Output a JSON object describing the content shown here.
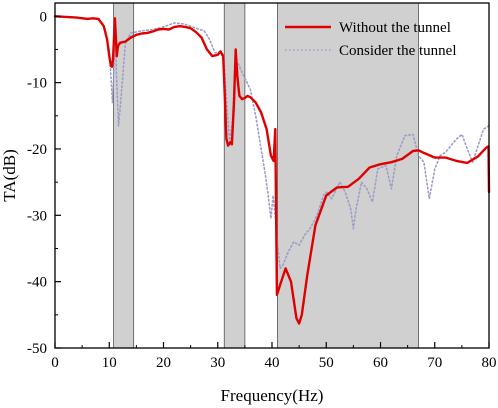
{
  "chart_data": {
    "type": "line",
    "xlabel": "Frequency(Hz)",
    "ylabel": "TA(dB)",
    "xlim": [
      0,
      80
    ],
    "ylim": [
      -50,
      2
    ],
    "xticks": [
      0,
      10,
      20,
      30,
      40,
      50,
      60,
      70,
      80
    ],
    "yticks": [
      0,
      -10,
      -20,
      -30,
      -40,
      -50
    ],
    "grid": false,
    "legend_position": "top-right",
    "shaded_bands": [
      {
        "x0": 10.8,
        "x1": 14.5
      },
      {
        "x0": 31.2,
        "x1": 35.0
      },
      {
        "x0": 41.0,
        "x1": 67.0
      }
    ],
    "band_color": "#d0d0d0",
    "series": [
      {
        "name": "Without the tunnel",
        "color": "#e00000",
        "style": "solid",
        "points": [
          [
            0,
            0
          ],
          [
            2,
            -0.1
          ],
          [
            4,
            -0.2
          ],
          [
            6,
            -0.4
          ],
          [
            7,
            -0.3
          ],
          [
            8,
            -0.4
          ],
          [
            9,
            -1.5
          ],
          [
            9.6,
            -3.5
          ],
          [
            10,
            -6
          ],
          [
            10.3,
            -7.5
          ],
          [
            10.5,
            -7.6
          ],
          [
            10.7,
            -6.5
          ],
          [
            10.9,
            -3
          ],
          [
            11.05,
            -0.3
          ],
          [
            11.2,
            -3
          ],
          [
            11.4,
            -6
          ],
          [
            11.6,
            -4.5
          ],
          [
            12,
            -4
          ],
          [
            13,
            -3.8
          ],
          [
            14,
            -3.2
          ],
          [
            15,
            -2.8
          ],
          [
            16,
            -2.6
          ],
          [
            17,
            -2.5
          ],
          [
            18,
            -2.3
          ],
          [
            19,
            -2.0
          ],
          [
            20,
            -1.9
          ],
          [
            21,
            -2.0
          ],
          [
            22,
            -1.6
          ],
          [
            23,
            -1.5
          ],
          [
            24,
            -1.6
          ],
          [
            25,
            -1.8
          ],
          [
            26,
            -2.4
          ],
          [
            27,
            -3.2
          ],
          [
            28,
            -5
          ],
          [
            29,
            -6
          ],
          [
            30,
            -5.8
          ],
          [
            30.5,
            -5.3
          ],
          [
            31,
            -6
          ],
          [
            31.3,
            -12
          ],
          [
            31.6,
            -18.5
          ],
          [
            31.9,
            -19.5
          ],
          [
            32.3,
            -19.0
          ],
          [
            32.6,
            -19.3
          ],
          [
            33,
            -13
          ],
          [
            33.3,
            -5
          ],
          [
            33.6,
            -9
          ],
          [
            34,
            -12
          ],
          [
            34.5,
            -12.5
          ],
          [
            35,
            -12.3
          ],
          [
            35.5,
            -12.0
          ],
          [
            36,
            -12.2
          ],
          [
            37,
            -13.0
          ],
          [
            38,
            -14.5
          ],
          [
            39,
            -17
          ],
          [
            39.8,
            -21
          ],
          [
            40.3,
            -21.8
          ],
          [
            40.6,
            -17
          ],
          [
            40.9,
            -42
          ],
          [
            41.5,
            -40.5
          ],
          [
            42.5,
            -38
          ],
          [
            43.5,
            -40
          ],
          [
            44.5,
            -45.5
          ],
          [
            45,
            -46.3
          ],
          [
            45.5,
            -45
          ],
          [
            46.5,
            -39
          ],
          [
            48,
            -31.5
          ],
          [
            50,
            -27
          ],
          [
            52,
            -25.8
          ],
          [
            54,
            -25.7
          ],
          [
            56,
            -24.5
          ],
          [
            58,
            -22.8
          ],
          [
            60,
            -22.3
          ],
          [
            62,
            -22.0
          ],
          [
            64,
            -21.5
          ],
          [
            66,
            -20.3
          ],
          [
            67,
            -20.2
          ],
          [
            68,
            -20.6
          ],
          [
            70,
            -21.3
          ],
          [
            72,
            -21.3
          ],
          [
            74,
            -21.8
          ],
          [
            76,
            -22.1
          ],
          [
            78,
            -21.1
          ],
          [
            79.5,
            -19.8
          ],
          [
            79.9,
            -19.6
          ],
          [
            80,
            -26.5
          ]
        ]
      },
      {
        "name": "Consider the tunnel",
        "color": "#9a9ec8",
        "style": "dotted",
        "points": [
          [
            0,
            0
          ],
          [
            2,
            -0.1
          ],
          [
            4,
            -0.2
          ],
          [
            6,
            -0.3
          ],
          [
            8,
            -0.4
          ],
          [
            9,
            -1.5
          ],
          [
            10,
            -5
          ],
          [
            10.3,
            -9
          ],
          [
            10.6,
            -13
          ],
          [
            10.8,
            -9
          ],
          [
            11.1,
            -3
          ],
          [
            11.4,
            -10
          ],
          [
            11.7,
            -16.5
          ],
          [
            12,
            -14
          ],
          [
            13,
            -4
          ],
          [
            14,
            -2.5
          ],
          [
            16,
            -2.2
          ],
          [
            18,
            -2.0
          ],
          [
            20,
            -1.6
          ],
          [
            22,
            -1.0
          ],
          [
            24,
            -1.2
          ],
          [
            26,
            -1.8
          ],
          [
            27.5,
            -2.2
          ],
          [
            28.5,
            -3.5
          ],
          [
            29.5,
            -5.5
          ],
          [
            30.5,
            -5.4
          ],
          [
            31.2,
            -7
          ],
          [
            31.7,
            -14
          ],
          [
            32.2,
            -19
          ],
          [
            32.7,
            -16
          ],
          [
            33.2,
            -7
          ],
          [
            33.8,
            -7.2
          ],
          [
            34.5,
            -8.5
          ],
          [
            36,
            -11
          ],
          [
            37,
            -15
          ],
          [
            38,
            -20
          ],
          [
            38.8,
            -24
          ],
          [
            39.3,
            -27
          ],
          [
            39.8,
            -30.5
          ],
          [
            40.2,
            -27
          ],
          [
            40.7,
            -31
          ],
          [
            41.1,
            -35
          ],
          [
            41.5,
            -38
          ],
          [
            42,
            -37.5
          ],
          [
            43,
            -35.5
          ],
          [
            44,
            -34
          ],
          [
            45,
            -34.5
          ],
          [
            46,
            -33
          ],
          [
            47,
            -32
          ],
          [
            48,
            -30.5
          ],
          [
            48.5,
            -29.5
          ],
          [
            49.5,
            -27
          ],
          [
            50,
            -26.5
          ],
          [
            51,
            -27.5
          ],
          [
            52.5,
            -25
          ],
          [
            53.5,
            -26.5
          ],
          [
            54.5,
            -29
          ],
          [
            55,
            -32
          ],
          [
            55.5,
            -29
          ],
          [
            56.5,
            -25
          ],
          [
            57.5,
            -26
          ],
          [
            58.5,
            -28
          ],
          [
            59.5,
            -23
          ],
          [
            61,
            -22.5
          ],
          [
            62,
            -26
          ],
          [
            63,
            -21
          ],
          [
            64.5,
            -18
          ],
          [
            66,
            -17.8
          ],
          [
            67,
            -21
          ],
          [
            68,
            -22
          ],
          [
            69,
            -27.5
          ],
          [
            70,
            -23
          ],
          [
            71,
            -21
          ],
          [
            72,
            -20.5
          ],
          [
            73,
            -19.5
          ],
          [
            74,
            -18.5
          ],
          [
            75,
            -17.8
          ],
          [
            76,
            -20
          ],
          [
            77,
            -22
          ],
          [
            78,
            -19.5
          ],
          [
            79,
            -17
          ],
          [
            80,
            -16.5
          ]
        ]
      }
    ]
  }
}
